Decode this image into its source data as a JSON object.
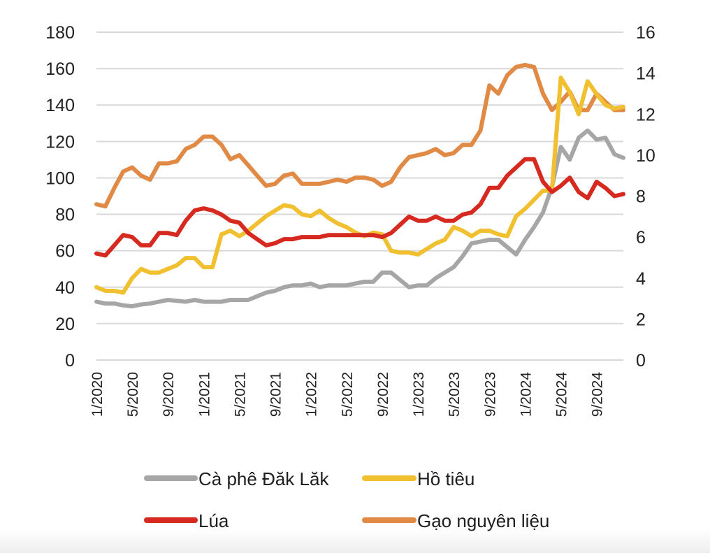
{
  "chart_data": {
    "type": "line",
    "title": "",
    "xlabel": "",
    "ylabel": "",
    "ylim": [
      0,
      180
    ],
    "y_ticks": [
      "0",
      "20",
      "40",
      "60",
      "80",
      "100",
      "120",
      "140",
      "160",
      "180"
    ],
    "y2lim": [
      0,
      16
    ],
    "y2_ticks": [
      "0",
      "2",
      "4",
      "6",
      "8",
      "10",
      "12",
      "14",
      "16"
    ],
    "grid": true,
    "x_start": "1/2020",
    "x_frequency": "monthly",
    "x_tick_labels": [
      "1/2020",
      "5/2020",
      "9/2020",
      "1/2021",
      "5/2021",
      "9/2021",
      "1/2022",
      "5/2022",
      "9/2022",
      "1/2023",
      "5/2023",
      "9/2023",
      "1/2024",
      "5/2024",
      "9/2024"
    ],
    "legend_position": "bottom",
    "series": [
      {
        "name": "Cà phê Đăk Lăk",
        "axis": "left",
        "color": "#a6a6a6",
        "values": [
          32,
          31,
          31,
          30,
          29.5,
          30.5,
          31,
          32,
          33,
          32.5,
          32,
          33,
          32,
          32,
          32,
          33,
          33,
          33,
          35,
          37,
          38,
          40,
          41,
          41,
          42,
          40,
          41,
          41,
          41,
          42,
          43,
          43,
          48,
          48,
          44,
          40,
          41,
          41,
          45,
          48,
          51,
          57,
          64,
          65,
          66,
          66,
          62,
          58,
          66,
          73,
          81,
          95,
          117,
          110,
          122,
          126,
          121,
          122,
          113,
          111
        ]
      },
      {
        "name": "Hồ tiêu",
        "axis": "left",
        "color": "#f0c030",
        "values": [
          40,
          38,
          38,
          37,
          45,
          50,
          48,
          48,
          50,
          52,
          56,
          56,
          51,
          51,
          69,
          71,
          68,
          71,
          75,
          79,
          82,
          85,
          84,
          80,
          79,
          82,
          78,
          75,
          73,
          70,
          68,
          70,
          69,
          60,
          59,
          59,
          58,
          61,
          64,
          66,
          73,
          71,
          68,
          71,
          71,
          69,
          68,
          79,
          83,
          88,
          93,
          93,
          155,
          147,
          135,
          153,
          146,
          140,
          138,
          139
        ]
      },
      {
        "name": "Lúa",
        "axis": "right",
        "color": "#d62a20",
        "values": [
          5.2,
          5.1,
          5.6,
          6.1,
          6.0,
          5.6,
          5.6,
          6.2,
          6.2,
          6.1,
          6.8,
          7.3,
          7.4,
          7.3,
          7.1,
          6.8,
          6.7,
          6.2,
          5.9,
          5.6,
          5.7,
          5.9,
          5.9,
          6.0,
          6.0,
          6.0,
          6.1,
          6.1,
          6.1,
          6.1,
          6.1,
          6.1,
          6.0,
          6.2,
          6.6,
          7.0,
          6.8,
          6.8,
          7.0,
          6.8,
          6.8,
          7.1,
          7.2,
          7.6,
          8.4,
          8.4,
          9.0,
          9.4,
          9.8,
          9.8,
          8.7,
          8.2,
          8.5,
          8.9,
          8.2,
          7.9,
          8.7,
          8.4,
          8.0,
          8.1
        ]
      },
      {
        "name": "Gạo nguyên liệu",
        "axis": "right",
        "color": "#e08a45",
        "values": [
          7.6,
          7.5,
          8.4,
          9.2,
          9.4,
          9.0,
          8.8,
          9.6,
          9.6,
          9.7,
          10.3,
          10.5,
          10.9,
          10.9,
          10.5,
          9.8,
          10.0,
          9.5,
          9.0,
          8.5,
          8.6,
          9.0,
          9.1,
          8.6,
          8.6,
          8.6,
          8.7,
          8.8,
          8.7,
          8.9,
          8.9,
          8.8,
          8.5,
          8.7,
          9.4,
          9.9,
          10.0,
          10.1,
          10.3,
          10.0,
          10.1,
          10.5,
          10.5,
          11.2,
          13.4,
          13.0,
          13.9,
          14.3,
          14.4,
          14.3,
          13.0,
          12.2,
          12.6,
          13.1,
          12.2,
          12.2,
          13.0,
          12.6,
          12.2,
          12.2
        ]
      }
    ]
  },
  "colors": {
    "gridline": "#d9d9d9",
    "text": "#222222"
  }
}
